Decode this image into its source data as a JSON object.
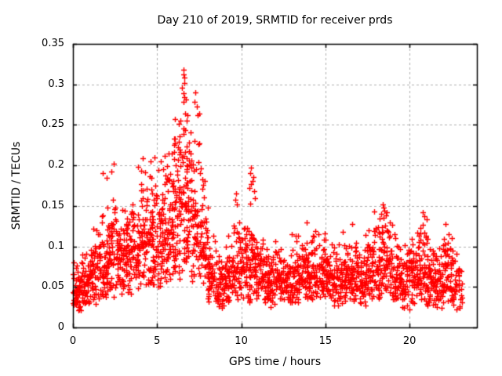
{
  "chart_data": {
    "type": "scatter",
    "title": "Day 210 of 2019, SRMTID for receiver prds",
    "xlabel": "GPS time / hours",
    "ylabel": "SRMTID / TECUs",
    "xlim": [
      0,
      24
    ],
    "ylim": [
      0,
      0.35
    ],
    "x_ticks": [
      {
        "v": 0,
        "label": "0"
      },
      {
        "v": 5,
        "label": "5"
      },
      {
        "v": 10,
        "label": "10"
      },
      {
        "v": 15,
        "label": "15"
      },
      {
        "v": 20,
        "label": "20"
      }
    ],
    "y_ticks": [
      {
        "v": 0,
        "label": "0"
      },
      {
        "v": 0.05,
        "label": "0.05"
      },
      {
        "v": 0.1,
        "label": "0.1"
      },
      {
        "v": 0.15,
        "label": "0.15"
      },
      {
        "v": 0.2,
        "label": "0.2"
      },
      {
        "v": 0.25,
        "label": "0.25"
      },
      {
        "v": 0.3,
        "label": "0.3"
      },
      {
        "v": 0.35,
        "label": "0.35"
      }
    ],
    "grid": true,
    "legend": "none",
    "marker": {
      "shape": "plus",
      "color": "#ff0000",
      "size": 7
    },
    "colors": {
      "marker": "#ff0000",
      "grid": "#b0b0b0",
      "border": "#000000",
      "background": "#ffffff",
      "text": "#000000"
    },
    "seed": 210,
    "envelope_bins": [
      [
        0.0,
        0.5,
        55,
        0.018,
        0.085
      ],
      [
        0.5,
        1.0,
        55,
        0.022,
        0.1
      ],
      [
        1.0,
        1.5,
        55,
        0.028,
        0.13
      ],
      [
        1.5,
        2.0,
        55,
        0.03,
        0.155
      ],
      [
        2.0,
        2.5,
        55,
        0.035,
        0.17
      ],
      [
        2.5,
        3.0,
        55,
        0.04,
        0.155
      ],
      [
        3.0,
        3.5,
        55,
        0.04,
        0.16
      ],
      [
        3.5,
        4.0,
        55,
        0.045,
        0.175
      ],
      [
        4.0,
        4.5,
        55,
        0.05,
        0.19
      ],
      [
        4.5,
        5.0,
        60,
        0.05,
        0.2
      ],
      [
        5.0,
        5.5,
        60,
        0.05,
        0.205
      ],
      [
        5.5,
        6.0,
        60,
        0.055,
        0.225
      ],
      [
        6.0,
        6.5,
        60,
        0.06,
        0.265
      ],
      [
        6.5,
        7.0,
        60,
        0.065,
        0.29
      ],
      [
        7.0,
        7.5,
        55,
        0.055,
        0.235
      ],
      [
        7.5,
        8.0,
        50,
        0.045,
        0.185
      ],
      [
        8.0,
        8.5,
        50,
        0.025,
        0.12
      ],
      [
        8.5,
        9.0,
        50,
        0.02,
        0.1
      ],
      [
        9.0,
        9.5,
        50,
        0.025,
        0.12
      ],
      [
        9.5,
        10.0,
        50,
        0.03,
        0.14
      ],
      [
        10.0,
        10.5,
        50,
        0.03,
        0.15
      ],
      [
        10.5,
        11.0,
        50,
        0.03,
        0.165
      ],
      [
        11.0,
        11.5,
        50,
        0.03,
        0.12
      ],
      [
        11.5,
        12.0,
        50,
        0.025,
        0.1
      ],
      [
        12.0,
        12.5,
        50,
        0.03,
        0.11
      ],
      [
        12.5,
        13.0,
        50,
        0.03,
        0.1
      ],
      [
        13.0,
        13.5,
        50,
        0.03,
        0.12
      ],
      [
        13.5,
        14.0,
        50,
        0.035,
        0.125
      ],
      [
        14.0,
        14.5,
        50,
        0.03,
        0.12
      ],
      [
        14.5,
        15.0,
        50,
        0.035,
        0.12
      ],
      [
        15.0,
        15.5,
        50,
        0.03,
        0.11
      ],
      [
        15.5,
        16.0,
        50,
        0.025,
        0.11
      ],
      [
        16.0,
        16.5,
        50,
        0.03,
        0.12
      ],
      [
        16.5,
        17.0,
        50,
        0.025,
        0.125
      ],
      [
        17.0,
        17.5,
        50,
        0.025,
        0.12
      ],
      [
        17.5,
        18.0,
        50,
        0.03,
        0.135
      ],
      [
        18.0,
        18.5,
        50,
        0.03,
        0.148
      ],
      [
        18.5,
        19.0,
        50,
        0.035,
        0.148
      ],
      [
        19.0,
        19.5,
        50,
        0.025,
        0.12
      ],
      [
        19.5,
        20.0,
        50,
        0.02,
        0.11
      ],
      [
        20.0,
        20.5,
        50,
        0.025,
        0.12
      ],
      [
        20.5,
        21.0,
        50,
        0.03,
        0.138
      ],
      [
        21.0,
        21.5,
        50,
        0.025,
        0.11
      ],
      [
        21.5,
        22.0,
        50,
        0.02,
        0.115
      ],
      [
        22.0,
        22.5,
        50,
        0.03,
        0.128
      ],
      [
        22.5,
        23.1,
        45,
        0.02,
        0.105
      ]
    ],
    "outliers": [
      [
        6.55,
        0.318
      ],
      [
        6.57,
        0.312
      ],
      [
        6.6,
        0.308
      ],
      [
        6.62,
        0.302
      ],
      [
        6.5,
        0.296
      ],
      [
        6.55,
        0.289
      ],
      [
        7.25,
        0.29
      ],
      [
        6.6,
        0.284
      ],
      [
        6.7,
        0.281
      ],
      [
        7.2,
        0.278
      ],
      [
        7.35,
        0.273
      ],
      [
        6.65,
        0.264
      ],
      [
        7.5,
        0.264
      ],
      [
        7.4,
        0.262
      ],
      [
        6.05,
        0.257
      ],
      [
        6.37,
        0.255
      ],
      [
        6.3,
        0.251
      ],
      [
        6.55,
        0.246
      ],
      [
        6.65,
        0.244
      ],
      [
        7.0,
        0.241
      ],
      [
        6.35,
        0.236
      ],
      [
        7.2,
        0.23
      ],
      [
        6.3,
        0.229
      ],
      [
        6.9,
        0.228
      ],
      [
        7.5,
        0.227
      ],
      [
        6.0,
        0.225
      ],
      [
        6.35,
        0.219
      ],
      [
        6.65,
        0.217
      ],
      [
        6.02,
        0.217
      ],
      [
        7.0,
        0.215
      ],
      [
        5.7,
        0.215
      ],
      [
        5.45,
        0.212
      ],
      [
        6.75,
        0.209
      ],
      [
        7.05,
        0.206
      ],
      [
        7.45,
        0.204
      ],
      [
        7.15,
        0.201
      ],
      [
        6.78,
        0.2
      ],
      [
        6.4,
        0.199
      ],
      [
        6.1,
        0.2
      ],
      [
        7.6,
        0.196
      ],
      [
        7.55,
        0.19
      ],
      [
        7.7,
        0.183
      ],
      [
        7.75,
        0.176
      ],
      [
        2.4,
        0.202
      ],
      [
        2.3,
        0.192
      ],
      [
        1.75,
        0.19
      ],
      [
        2.0,
        0.185
      ],
      [
        4.15,
        0.209
      ],
      [
        3.85,
        0.198
      ],
      [
        4.05,
        0.193
      ],
      [
        4.3,
        0.191
      ],
      [
        4.6,
        0.205
      ],
      [
        4.85,
        0.21
      ],
      [
        5.1,
        0.194
      ],
      [
        5.2,
        0.205
      ],
      [
        5.35,
        0.195
      ],
      [
        9.65,
        0.158
      ],
      [
        9.7,
        0.165
      ],
      [
        9.75,
        0.152
      ],
      [
        10.5,
        0.172
      ],
      [
        10.55,
        0.19
      ],
      [
        10.6,
        0.197
      ],
      [
        10.6,
        0.177
      ],
      [
        10.65,
        0.181
      ],
      [
        10.7,
        0.186
      ],
      [
        10.75,
        0.168
      ],
      [
        10.8,
        0.16
      ],
      [
        13.9,
        0.13
      ],
      [
        16.6,
        0.128
      ],
      [
        17.9,
        0.143
      ],
      [
        18.3,
        0.14
      ],
      [
        18.4,
        0.152
      ],
      [
        18.45,
        0.148
      ],
      [
        18.5,
        0.144
      ],
      [
        18.6,
        0.138
      ],
      [
        20.8,
        0.142
      ],
      [
        20.9,
        0.137
      ],
      [
        21.0,
        0.133
      ],
      [
        22.15,
        0.128
      ]
    ]
  }
}
